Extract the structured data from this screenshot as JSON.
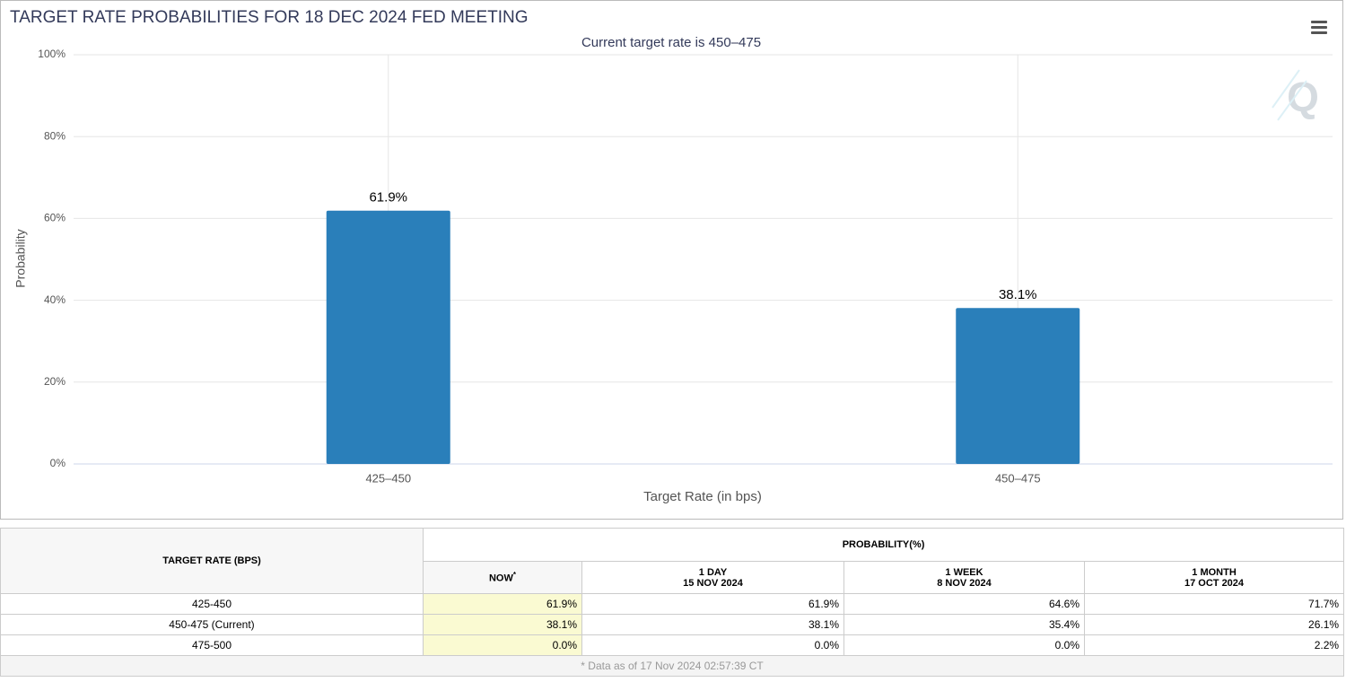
{
  "chart_data": {
    "type": "bar",
    "title": "TARGET RATE PROBABILITIES FOR 18 DEC 2024 FED MEETING",
    "subtitle": "Current target rate is 450–475",
    "x_label": "Target Rate (in bps)",
    "y_label": "Probability",
    "categories": [
      "425–450",
      "450–475"
    ],
    "values": [
      61.9,
      38.1
    ],
    "value_labels": [
      "61.9%",
      "38.1%"
    ],
    "color": "#2a7fba",
    "ylim": [
      0,
      100
    ],
    "yticks": [
      {
        "value": 0,
        "label": "0%"
      },
      {
        "value": 20,
        "label": "20%"
      },
      {
        "value": 40,
        "label": "40%"
      },
      {
        "value": 60,
        "label": "60%"
      },
      {
        "value": 80,
        "label": "80%"
      },
      {
        "value": 100,
        "label": "100%"
      }
    ],
    "grid": true
  },
  "table": {
    "header": {
      "target": "TARGET RATE (BPS)",
      "probability": "PROBABILITY(%)",
      "columns": [
        {
          "label": "NOW",
          "note": "*"
        },
        {
          "label": "1 DAY",
          "date": "15 NOV 2024"
        },
        {
          "label": "1 WEEK",
          "date": "8 NOV 2024"
        },
        {
          "label": "1 MONTH",
          "date": "17 OCT 2024"
        }
      ]
    },
    "rows": [
      [
        "425-450",
        "61.9%",
        "61.9%",
        "64.6%",
        "71.7%"
      ],
      [
        "450-475 (Current)",
        "38.1%",
        "38.1%",
        "35.4%",
        "26.1%"
      ],
      [
        "475-500",
        "0.0%",
        "0.0%",
        "0.0%",
        "2.2%"
      ]
    ],
    "footer": "* Data as of 17 Nov 2024 02:57:39 CT"
  }
}
